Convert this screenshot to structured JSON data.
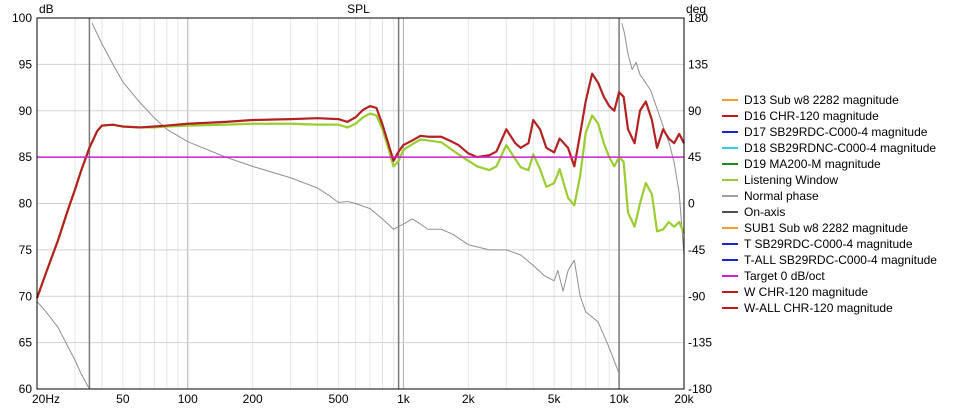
{
  "chart_data": {
    "type": "line",
    "title": "SPL",
    "left_unit": "dB",
    "right_unit": "deg",
    "x_scale": "log",
    "xlim": [
      20,
      20000
    ],
    "ylim": [
      60,
      100
    ],
    "y2lim": [
      -180,
      180
    ],
    "x_ticks": [
      {
        "value": 20,
        "label": "20Hz"
      },
      {
        "value": 50,
        "label": "50"
      },
      {
        "value": 100,
        "label": "100"
      },
      {
        "value": 200,
        "label": "200"
      },
      {
        "value": 500,
        "label": "500"
      },
      {
        "value": 1000,
        "label": "1k"
      },
      {
        "value": 2000,
        "label": "2k"
      },
      {
        "value": 5000,
        "label": "5k"
      },
      {
        "value": 10000,
        "label": "10k"
      },
      {
        "value": 20000,
        "label": "20k"
      }
    ],
    "y_ticks": [
      "60",
      "65",
      "70",
      "75",
      "80",
      "85",
      "90",
      "95",
      "100"
    ],
    "y2_ticks": [
      "-180",
      "-135",
      "-90",
      "-45",
      "0",
      "45",
      "90",
      "135",
      "180"
    ],
    "grid": true,
    "vertical_markers": [
      35,
      950,
      10000
    ],
    "legend_placement": "right",
    "legend": [
      {
        "name": "D13 Sub w8 2282 magnitude",
        "color": "#f0a030"
      },
      {
        "name": "D16 CHR-120 magnitude",
        "color": "#c01818"
      },
      {
        "name": "D17 SB29RDC-C000-4 magnitude",
        "color": "#2020d0"
      },
      {
        "name": "D18 SB29RDNC-C000-4 magnitude",
        "color": "#30d0e8"
      },
      {
        "name": "D19 MA200-M magnitude",
        "color": "#18901c"
      },
      {
        "name": "Listening Window",
        "color": "#9acd32"
      },
      {
        "name": "Normal phase",
        "color": "#a0a0a0"
      },
      {
        "name": "On-axis",
        "color": "#505050"
      },
      {
        "name": "SUB1 Sub w8 2282 magnitude",
        "color": "#f0a030"
      },
      {
        "name": "T SB29RDC-C000-4 magnitude",
        "color": "#2020d0"
      },
      {
        "name": "T-ALL SB29RDC-C000-4 magnitude",
        "color": "#2020d0"
      },
      {
        "name": "Target 0 dB/oct",
        "color": "#d020d0"
      },
      {
        "name": "W CHR-120 magnitude",
        "color": "#c01818"
      },
      {
        "name": "W-ALL CHR-120 magnitude",
        "color": "#c01818"
      }
    ],
    "series": [
      {
        "name": "W-ALL CHR-120 magnitude",
        "axis": "left",
        "color": "#b22222",
        "x": [
          20,
          22,
          25,
          28,
          30,
          32,
          35,
          38,
          40,
          45,
          50,
          60,
          70,
          80,
          100,
          150,
          200,
          300,
          400,
          500,
          550,
          600,
          650,
          700,
          750,
          800,
          850,
          900,
          950,
          1000,
          1100,
          1200,
          1300,
          1500,
          1700,
          1800,
          2000,
          2200,
          2500,
          2700,
          3000,
          3300,
          3500,
          3800,
          4000,
          4300,
          4600,
          5000,
          5300,
          5800,
          6200,
          6600,
          7000,
          7500,
          8000,
          8500,
          9000,
          9500,
          10000,
          10500,
          11000,
          11800,
          12500,
          13300,
          14200,
          15000,
          16000,
          17000,
          18000,
          19000,
          20000
        ],
        "values": [
          69.8,
          72.5,
          76.0,
          79.5,
          81.5,
          83.5,
          86.0,
          87.8,
          88.4,
          88.5,
          88.3,
          88.2,
          88.3,
          88.4,
          88.6,
          88.8,
          89.0,
          89.1,
          89.2,
          89.1,
          88.8,
          89.3,
          90.1,
          90.5,
          90.3,
          88.5,
          86.5,
          84.6,
          85.6,
          86.3,
          86.8,
          87.3,
          87.2,
          87.2,
          86.6,
          86.3,
          85.4,
          85.0,
          85.2,
          85.6,
          88.0,
          86.5,
          86.0,
          86.5,
          89.0,
          88.0,
          86.0,
          85.5,
          87.0,
          86.0,
          84.0,
          87.5,
          91.0,
          94.0,
          93.0,
          91.5,
          90.5,
          90.0,
          92.0,
          91.5,
          88.0,
          86.5,
          90.0,
          91.0,
          89.0,
          86.0,
          88.0,
          87.0,
          86.5,
          87.5,
          86.5
        ]
      },
      {
        "name": "Listening Window",
        "axis": "left",
        "color": "#9acd32",
        "x": [
          20,
          22,
          25,
          28,
          30,
          32,
          35,
          38,
          40,
          45,
          50,
          60,
          70,
          80,
          100,
          150,
          200,
          300,
          400,
          500,
          550,
          600,
          650,
          700,
          750,
          800,
          850,
          900,
          950,
          1000,
          1100,
          1200,
          1300,
          1500,
          1700,
          1800,
          2000,
          2200,
          2500,
          2700,
          3000,
          3300,
          3500,
          3800,
          4000,
          4300,
          4600,
          5000,
          5300,
          5800,
          6200,
          6600,
          7000,
          7500,
          8000,
          8500,
          9000,
          9500,
          10000,
          10500,
          11000,
          11800,
          12500,
          13300,
          14200,
          15000,
          16000,
          17000,
          18000,
          19000,
          20000
        ],
        "values": [
          69.8,
          72.5,
          76.0,
          79.5,
          81.5,
          83.5,
          86.0,
          87.8,
          88.4,
          88.5,
          88.3,
          88.2,
          88.2,
          88.3,
          88.4,
          88.5,
          88.6,
          88.6,
          88.5,
          88.5,
          88.2,
          88.6,
          89.3,
          89.7,
          89.5,
          88.0,
          86.0,
          84.0,
          84.6,
          85.8,
          86.4,
          86.9,
          86.8,
          86.6,
          85.7,
          85.3,
          84.6,
          84.0,
          83.6,
          84.0,
          86.3,
          84.8,
          83.9,
          83.6,
          85.3,
          83.7,
          81.8,
          82.2,
          83.7,
          80.6,
          79.8,
          83.0,
          87.6,
          89.5,
          88.6,
          86.5,
          85.0,
          84.0,
          85.0,
          84.5,
          79.0,
          77.5,
          80.0,
          82.2,
          81.0,
          77.0,
          77.2,
          78.0,
          77.5,
          78.0,
          76.8
        ]
      },
      {
        "name": "Normal phase",
        "axis": "right",
        "color": "#909090",
        "x": [
          20,
          22,
          25,
          28,
          30,
          32,
          35,
          36,
          40,
          45,
          50,
          60,
          70,
          80,
          100,
          150,
          200,
          300,
          400,
          450,
          500,
          550,
          600,
          700,
          800,
          900,
          1000,
          1100,
          1200,
          1300,
          1500,
          1700,
          2000,
          2500,
          3000,
          3500,
          4000,
          4500,
          5000,
          5200,
          5500,
          5800,
          6200,
          6600,
          7000,
          8000,
          9000,
          10000,
          10300,
          10600,
          11000,
          11500,
          12000,
          12500,
          13000,
          14000,
          15000,
          16000,
          17000,
          18000,
          19000,
          20000
        ],
        "values": [
          -95,
          -105,
          -120,
          -140,
          -152,
          -165,
          -180,
          175,
          155,
          135,
          118,
          98,
          83,
          72,
          60,
          45,
          36,
          25,
          15,
          8,
          1,
          2,
          0,
          -5,
          -15,
          -25,
          -20,
          -15,
          -20,
          -25,
          -25,
          -30,
          -40,
          -45,
          -45,
          -50,
          -60,
          -70,
          -75,
          -65,
          -85,
          -65,
          -55,
          -90,
          -105,
          -115,
          -140,
          -165,
          175,
          165,
          145,
          130,
          137,
          125,
          120,
          110,
          92,
          75,
          60,
          40,
          10,
          -50
        ]
      },
      {
        "name": "Target 0 dB/oct",
        "axis": "left",
        "color": "#d020d0",
        "x": [
          20,
          20000
        ],
        "values": [
          85,
          85
        ]
      }
    ]
  }
}
